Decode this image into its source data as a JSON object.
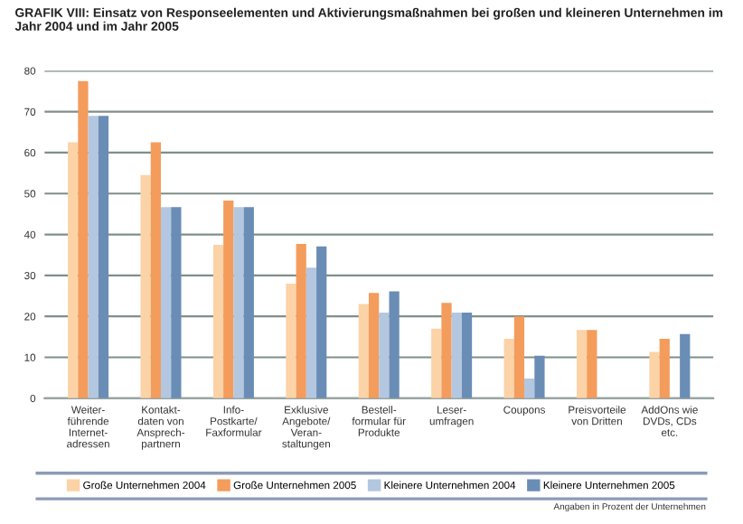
{
  "chart_data": {
    "type": "bar",
    "title": "GRAFIK VIII: Einsatz von Responseelementen und Aktivierungsmaßnahmen bei großen und kleineren Unternehmen im Jahr 2004 und im Jahr 2005",
    "categories": [
      "Weiter-\nführende\nInternet-\nadressen",
      "Kontakt-\ndaten von\nAnsprech-\npartnern",
      "Info-\nPostkarte/\nFaxformular",
      "Exklusive\nAngebote/\nVeran-\nstaltungen",
      "Bestell-\nformular für\nProdukte",
      "Leser-\numfragen",
      "Coupons",
      "Preisvorteile\nvon Dritten",
      "AddOns wie\nDVDs, CDs\netc."
    ],
    "series": [
      {
        "name": "Große Unternehmen 2004",
        "color": "#fbd3a7",
        "values": [
          62.5,
          54.5,
          37.5,
          28,
          23,
          17,
          14.5,
          16.7,
          11.3
        ]
      },
      {
        "name": "Große Unternehmen 2005",
        "color": "#f49c5c",
        "values": [
          77.5,
          62.5,
          48.3,
          37.7,
          25.7,
          23.3,
          20,
          16.7,
          14.5
        ]
      },
      {
        "name": "Kleinere Unternehmen 2004",
        "color": "#b3c7e0",
        "values": [
          69,
          46.7,
          46.7,
          31.9,
          20.9,
          20.9,
          4.8,
          null,
          null
        ]
      },
      {
        "name": "Kleinere Unternehmen 2005",
        "color": "#6a8db5",
        "values": [
          69,
          46.7,
          46.7,
          37.1,
          26.1,
          20.9,
          10.4,
          null,
          15.7
        ]
      }
    ],
    "ylim": [
      0,
      80
    ],
    "yticks": [
      0,
      10,
      20,
      30,
      40,
      50,
      60,
      70,
      80
    ],
    "grid": "y",
    "legend": "bottom",
    "annotations": [
      "Angaben in Prozent der Unternehmen"
    ]
  }
}
